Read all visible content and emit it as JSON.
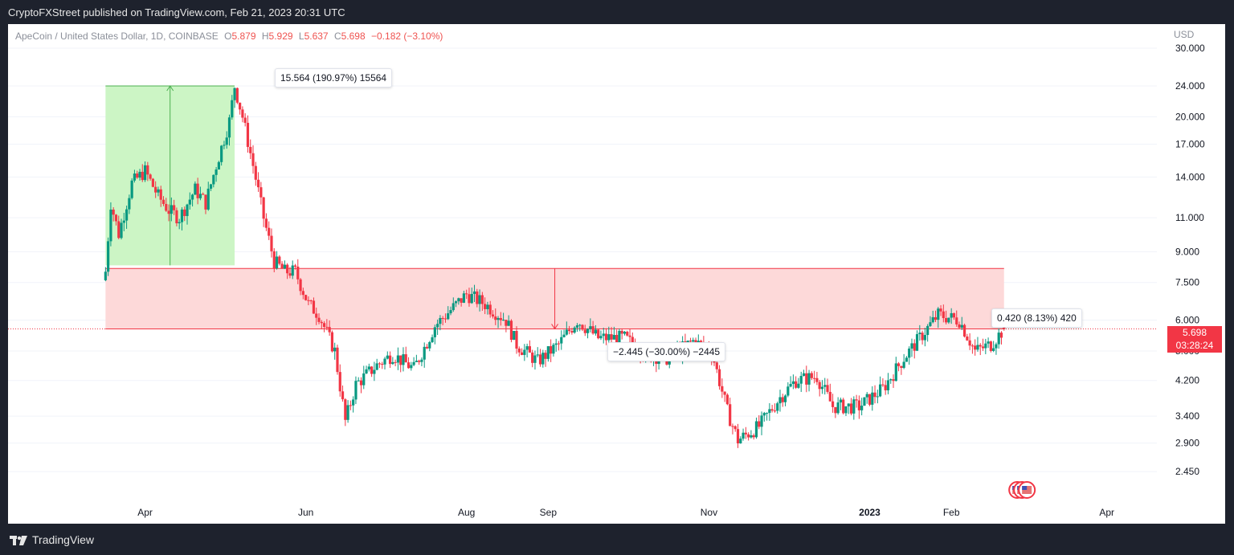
{
  "header": {
    "publisher_line": "CryptoFXStreet published on TradingView.com, Feb 21, 2023 20:31 UTC"
  },
  "footer": {
    "brand": "TradingView"
  },
  "legend": {
    "symbol": "ApeCoin / United States Dollar, 1D, COINBASE",
    "o_key": "O",
    "o_val": "5.879",
    "h_key": "H",
    "h_val": "5.929",
    "l_key": "L",
    "l_val": "5.637",
    "c_key": "C",
    "c_val": "5.698",
    "change": "−0.182 (−3.10%)"
  },
  "axis": {
    "currency": "USD"
  },
  "measures": {
    "up": "15.564 (190.97%) 15564",
    "down": "−2.445 (−30.00%) −2445",
    "recent": "0.420 (8.13%) 420"
  },
  "price_tag": {
    "price": "5.698",
    "countdown": "03:28:24"
  },
  "colors": {
    "up": "#089981",
    "down": "#f23645",
    "zone_green": "#ccf5c5",
    "zone_red": "#fdd9d9"
  },
  "chart_data": {
    "type": "candlestick",
    "symbol": "ApeCoin / United States Dollar",
    "interval": "1D",
    "y_scale": "log",
    "ylim": [
      2.25,
      33
    ],
    "y_ticks": [
      2.45,
      2.9,
      3.4,
      4.2,
      5.0,
      6.0,
      7.5,
      9.0,
      11.0,
      14.0,
      17.0,
      20.0,
      24.0,
      30.0
    ],
    "y_tick_labels": [
      "2.450",
      "2.900",
      "3.400",
      "4.200",
      "5.000",
      "6.000",
      "7.500",
      "9.000",
      "11.000",
      "14.000",
      "17.000",
      "20.000",
      "24.000",
      "30.000"
    ],
    "x_tick_labels": [
      "Apr",
      "Jun",
      "Aug",
      "Sep",
      "Nov",
      "2023",
      "Feb",
      "Apr"
    ],
    "x_ticks": [
      "2022-04-01",
      "2022-06-01",
      "2022-08-01",
      "2022-09-01",
      "2022-11-01",
      "2023-01-01",
      "2023-02-01",
      "2023-04-01"
    ],
    "x_range": [
      "2022-02-08",
      "2023-04-20"
    ],
    "ohlc_last": {
      "open": 5.879,
      "high": 5.929,
      "low": 5.637,
      "close": 5.698
    },
    "close_anchors": [
      [
        "2022-03-17",
        8.0
      ],
      [
        "2022-03-19",
        12.0
      ],
      [
        "2022-03-22",
        10.0
      ],
      [
        "2022-03-27",
        13.5
      ],
      [
        "2022-04-01",
        14.5
      ],
      [
        "2022-04-06",
        12.5
      ],
      [
        "2022-04-10",
        11.5
      ],
      [
        "2022-04-14",
        11.0
      ],
      [
        "2022-04-20",
        13.0
      ],
      [
        "2022-04-24",
        12.0
      ],
      [
        "2022-04-28",
        15.0
      ],
      [
        "2022-05-03",
        19.5
      ],
      [
        "2022-05-05",
        24.0
      ],
      [
        "2022-05-08",
        20.0
      ],
      [
        "2022-05-12",
        15.0
      ],
      [
        "2022-05-16",
        11.0
      ],
      [
        "2022-05-20",
        8.5
      ],
      [
        "2022-05-24",
        8.0
      ],
      [
        "2022-05-28",
        8.0
      ],
      [
        "2022-06-02",
        6.6
      ],
      [
        "2022-06-06",
        6.2
      ],
      [
        "2022-06-12",
        5.0
      ],
      [
        "2022-06-16",
        3.3
      ],
      [
        "2022-06-20",
        4.1
      ],
      [
        "2022-06-28",
        4.6
      ],
      [
        "2022-07-04",
        4.9
      ],
      [
        "2022-07-12",
        4.5
      ],
      [
        "2022-07-20",
        5.8
      ],
      [
        "2022-08-01",
        7.0
      ],
      [
        "2022-08-08",
        6.6
      ],
      [
        "2022-08-16",
        6.0
      ],
      [
        "2022-08-20",
        5.2
      ],
      [
        "2022-08-28",
        4.7
      ],
      [
        "2022-09-05",
        5.2
      ],
      [
        "2022-09-12",
        6.0
      ],
      [
        "2022-09-20",
        5.4
      ],
      [
        "2022-09-30",
        5.4
      ],
      [
        "2022-10-08",
        4.9
      ],
      [
        "2022-10-16",
        4.8
      ],
      [
        "2022-10-26",
        5.3
      ],
      [
        "2022-11-02",
        5.0
      ],
      [
        "2022-11-08",
        3.5
      ],
      [
        "2022-11-12",
        2.95
      ],
      [
        "2022-11-20",
        3.2
      ],
      [
        "2022-11-28",
        3.8
      ],
      [
        "2022-12-04",
        4.2
      ],
      [
        "2022-12-12",
        4.3
      ],
      [
        "2022-12-18",
        3.6
      ],
      [
        "2022-12-28",
        3.6
      ],
      [
        "2023-01-06",
        4.0
      ],
      [
        "2023-01-14",
        4.8
      ],
      [
        "2023-01-20",
        5.4
      ],
      [
        "2023-01-27",
        6.2
      ],
      [
        "2023-02-04",
        6.0
      ],
      [
        "2023-02-10",
        5.0
      ],
      [
        "2023-02-16",
        5.2
      ],
      [
        "2023-02-21",
        5.698
      ]
    ]
  }
}
